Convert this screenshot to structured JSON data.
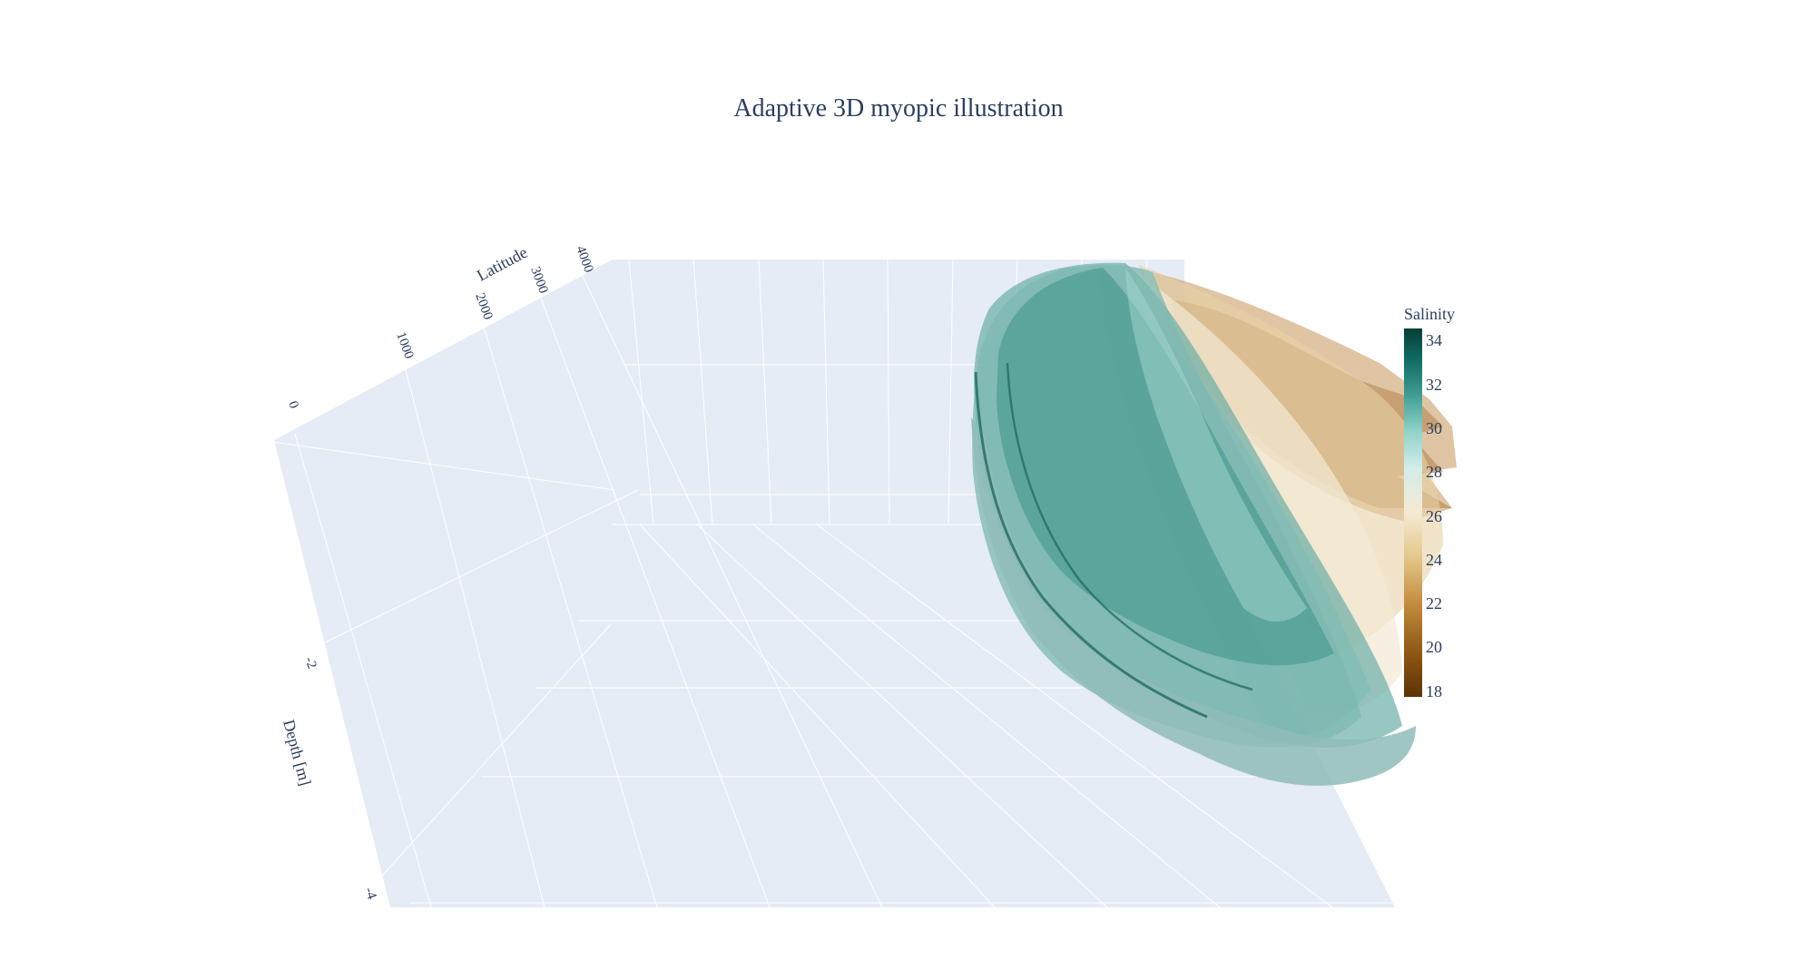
{
  "chart_data": {
    "type": "isosurface",
    "title": "Adaptive 3D myopic illustration",
    "axes": {
      "latitude": {
        "title": "Latitude",
        "ticks": [
          "0",
          "1000",
          "2000",
          "3000",
          "4000"
        ]
      },
      "depth": {
        "title": "Depth [m]",
        "ticks": [
          "-2",
          "-4"
        ]
      }
    },
    "colorbar": {
      "title": "Salinity",
      "ticks": [
        "34",
        "32",
        "30",
        "28",
        "26",
        "24",
        "22",
        "20",
        "18"
      ],
      "range": [
        18,
        34
      ],
      "colorscale": [
        "#5c3305",
        "#8f5813",
        "#c28a3c",
        "#e4c88b",
        "#f5ead2",
        "#d3ede9",
        "#8fd3c9",
        "#3f9d93",
        "#0f6a62",
        "#053e36"
      ]
    },
    "grid": true,
    "scene_background": "#e5ecf6",
    "gridline_color": "#ffffff"
  }
}
